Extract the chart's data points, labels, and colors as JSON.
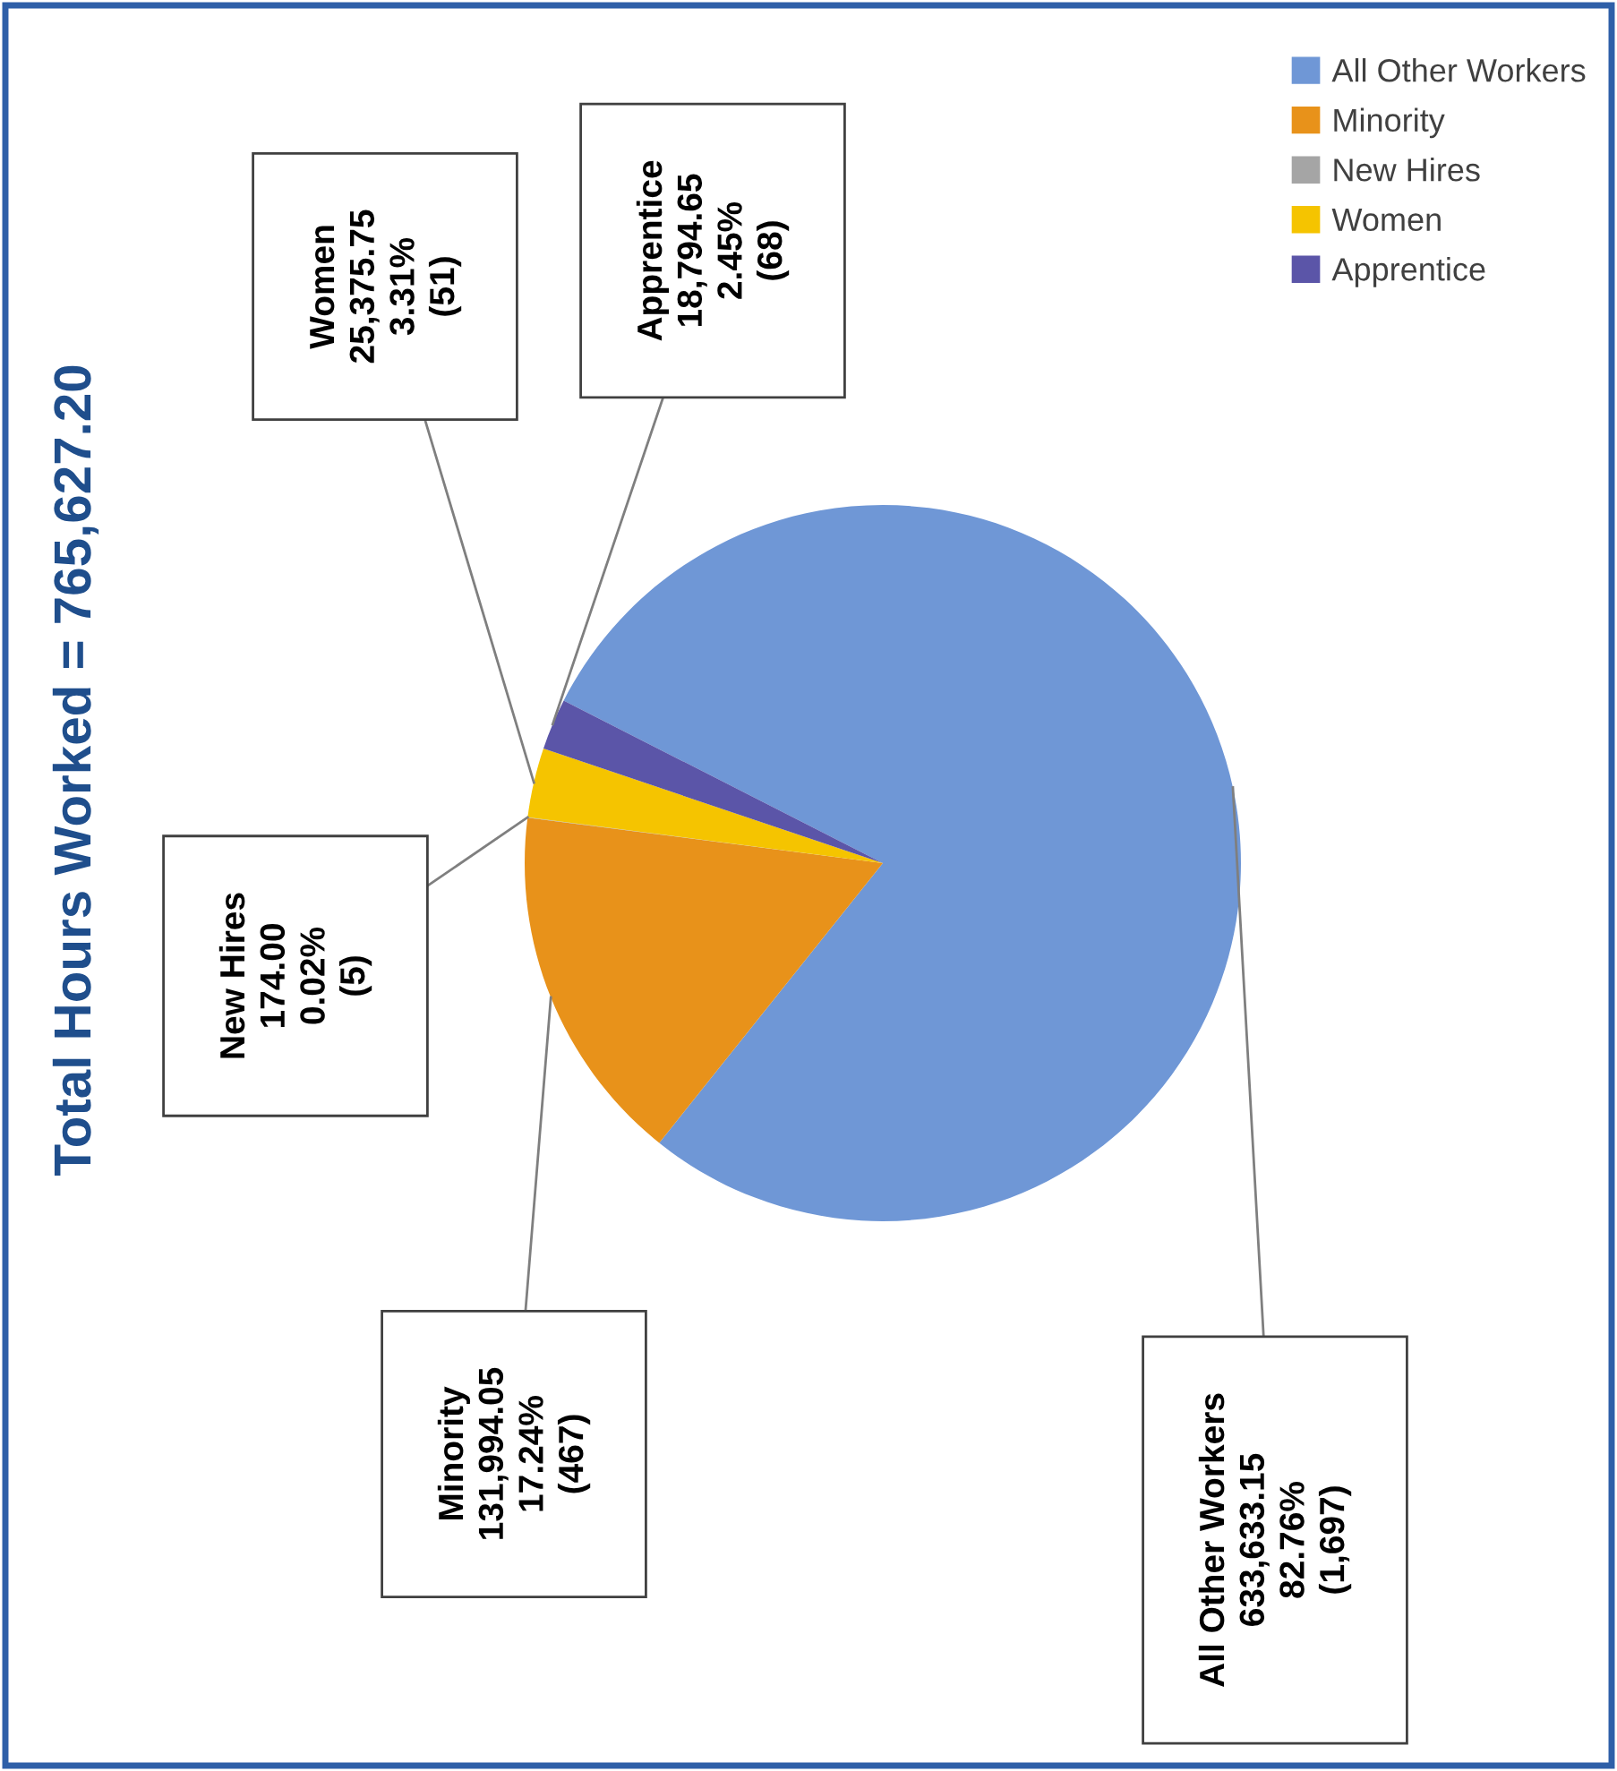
{
  "chart_data": {
    "type": "pie",
    "title": "Total Hours Worked = 765,627.20",
    "categories": [
      "All Other Workers",
      "Minority",
      "New Hires",
      "Women",
      "Apprentice"
    ],
    "values": [
      633633.15,
      131994.05,
      174.0,
      25375.75,
      18794.65
    ],
    "value_labels": [
      "633,633.15\n82.76%\n(1,697)",
      "131,994.05\n17.24%\n(467)",
      "174.00\n0.02%\n(5)",
      "25,375.75\n3.31%\n(51)",
      "18,794.65\n2.45%\n(68)"
    ],
    "colors": [
      "#6f97d6",
      "#e8921a",
      "#a5a5a5",
      "#f5c400",
      "#5b55a8"
    ],
    "legend": "top right"
  }
}
